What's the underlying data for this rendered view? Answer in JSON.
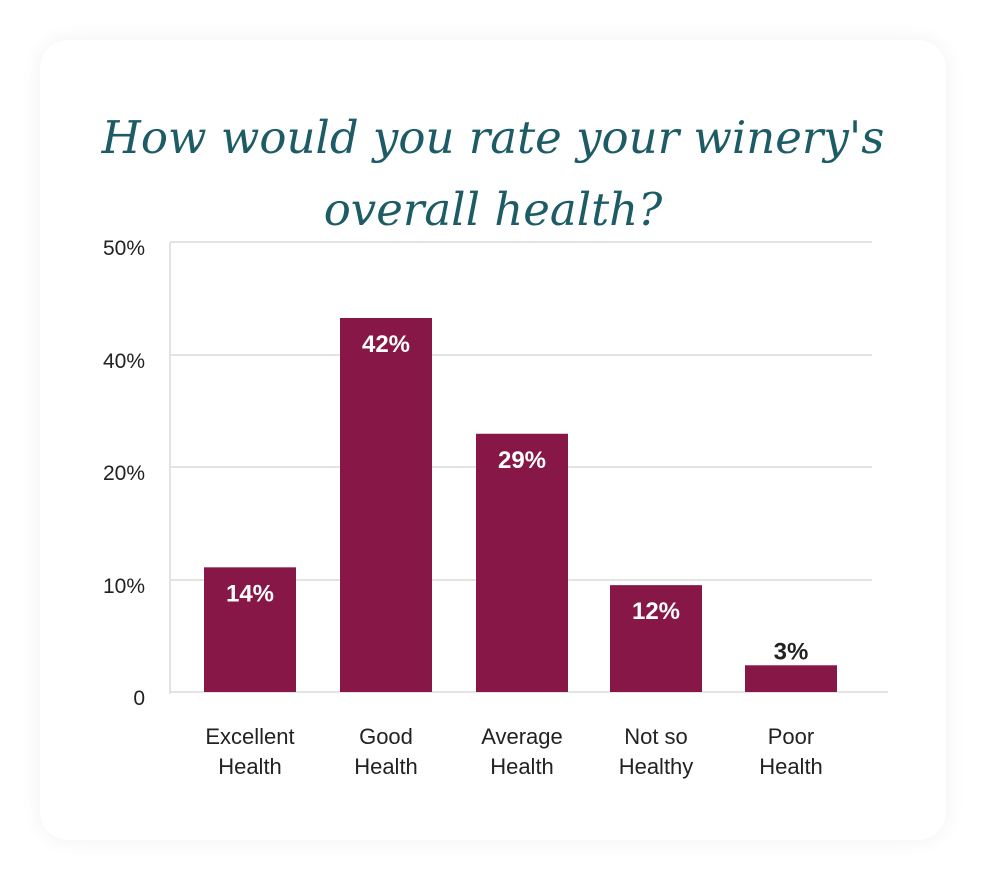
{
  "chart_data": {
    "type": "bar",
    "title": "How would you rate your winery's overall health?",
    "categories": [
      [
        "Excellent",
        "Health"
      ],
      [
        "Good",
        "Health"
      ],
      [
        "Average",
        "Health"
      ],
      [
        "Not so",
        "Healthy"
      ],
      [
        "Poor",
        "Health"
      ]
    ],
    "values": [
      14,
      42,
      29,
      12,
      3
    ],
    "value_labels": [
      "14%",
      "42%",
      "29%",
      "12%",
      "3%"
    ],
    "y_ticks": [
      {
        "label": "0",
        "value": 0
      },
      {
        "label": "10%",
        "value": 10
      },
      {
        "label": "20%",
        "value": 20
      },
      {
        "label": "40%",
        "value": 40
      },
      {
        "label": "50%",
        "value": 50
      }
    ],
    "xlabel": "",
    "ylabel": "",
    "ylim": [
      0,
      50
    ],
    "grid": true,
    "colors": {
      "bar": "#861747",
      "title": "#1d5c66",
      "grid": "#e3e3e3",
      "label_inside": "#ffffff",
      "label_outside": "#222222"
    }
  }
}
